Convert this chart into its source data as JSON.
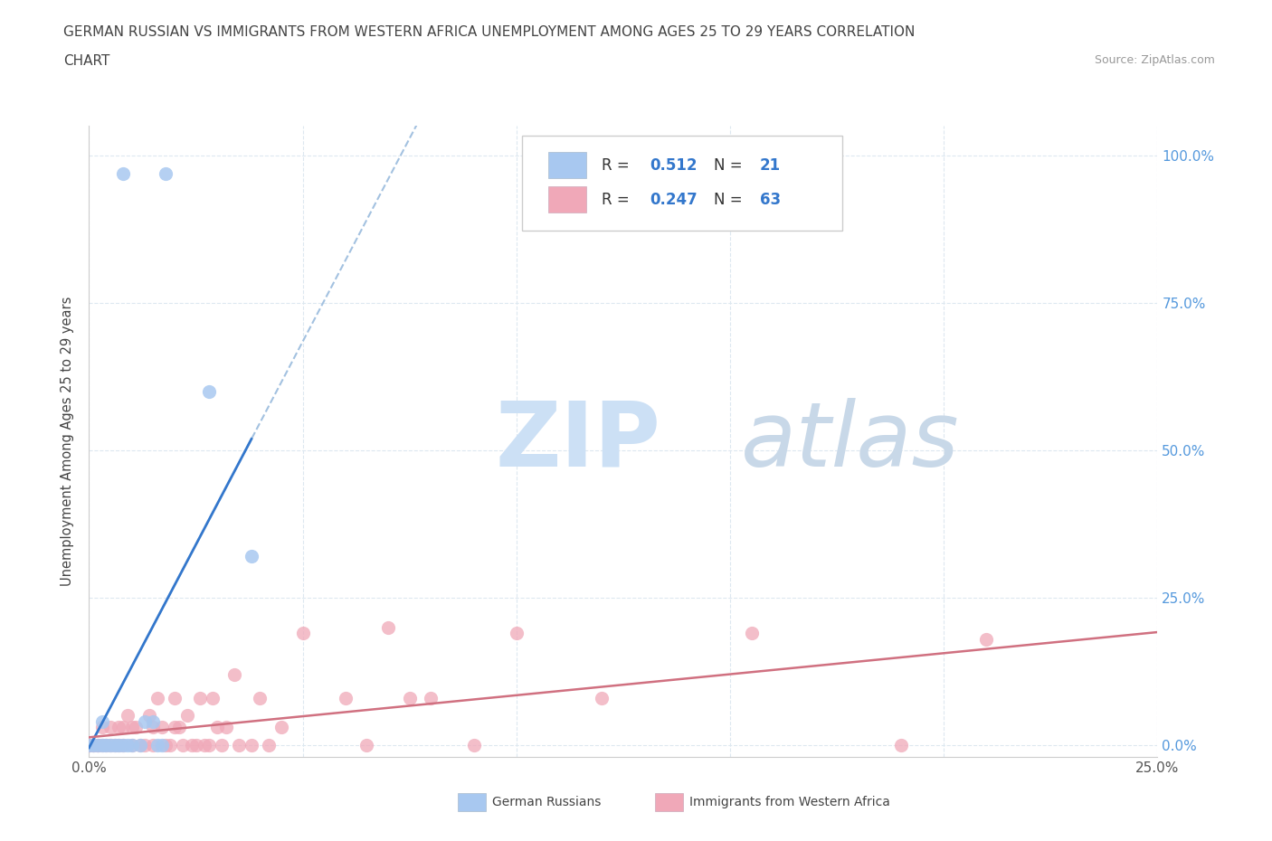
{
  "title_line1": "GERMAN RUSSIAN VS IMMIGRANTS FROM WESTERN AFRICA UNEMPLOYMENT AMONG AGES 25 TO 29 YEARS CORRELATION",
  "title_line2": "CHART",
  "source_text": "Source: ZipAtlas.com",
  "ylabel": "Unemployment Among Ages 25 to 29 years",
  "xlim": [
    0.0,
    0.25
  ],
  "ylim": [
    -0.02,
    1.05
  ],
  "color_blue": "#a8c8f0",
  "color_blue_line": "#3377cc",
  "color_blue_dash": "#99bbdd",
  "color_pink": "#f0a8b8",
  "color_pink_line": "#d07080",
  "watermark_zip": "ZIP",
  "watermark_atlas": "atlas",
  "watermark_color_zip": "#cce0f5",
  "watermark_color_atlas": "#c8d8e8",
  "background_color": "#ffffff",
  "grid_color": "#dde8f0",
  "legend_r1_text": "R = ",
  "legend_r1_val": "0.512",
  "legend_n1_text": "N = ",
  "legend_n1_val": "21",
  "legend_r2_text": "R = ",
  "legend_r2_val": "0.247",
  "legend_n2_text": "N = ",
  "legend_n2_val": "63",
  "german_russian_points": [
    [
      0.008,
      0.97
    ],
    [
      0.018,
      0.97
    ],
    [
      0.028,
      0.6
    ],
    [
      0.038,
      0.32
    ],
    [
      0.0,
      0.0
    ],
    [
      0.001,
      0.0
    ],
    [
      0.002,
      0.0
    ],
    [
      0.003,
      0.0
    ],
    [
      0.004,
      0.0
    ],
    [
      0.005,
      0.0
    ],
    [
      0.006,
      0.0
    ],
    [
      0.007,
      0.0
    ],
    [
      0.008,
      0.0
    ],
    [
      0.009,
      0.0
    ],
    [
      0.01,
      0.0
    ],
    [
      0.012,
      0.0
    ],
    [
      0.013,
      0.04
    ],
    [
      0.015,
      0.04
    ],
    [
      0.016,
      0.0
    ],
    [
      0.017,
      0.0
    ],
    [
      0.003,
      0.04
    ]
  ],
  "western_africa_points": [
    [
      0.0,
      0.0
    ],
    [
      0.0,
      0.0
    ],
    [
      0.0,
      0.0
    ],
    [
      0.0,
      0.0
    ],
    [
      0.001,
      0.0
    ],
    [
      0.001,
      0.0
    ],
    [
      0.002,
      0.0
    ],
    [
      0.002,
      0.0
    ],
    [
      0.003,
      0.0
    ],
    [
      0.003,
      0.03
    ],
    [
      0.004,
      0.0
    ],
    [
      0.005,
      0.0
    ],
    [
      0.005,
      0.03
    ],
    [
      0.006,
      0.0
    ],
    [
      0.007,
      0.0
    ],
    [
      0.007,
      0.03
    ],
    [
      0.008,
      0.0
    ],
    [
      0.008,
      0.03
    ],
    [
      0.009,
      0.05
    ],
    [
      0.01,
      0.03
    ],
    [
      0.01,
      0.0
    ],
    [
      0.011,
      0.03
    ],
    [
      0.012,
      0.0
    ],
    [
      0.013,
      0.0
    ],
    [
      0.014,
      0.05
    ],
    [
      0.015,
      0.03
    ],
    [
      0.015,
      0.0
    ],
    [
      0.016,
      0.08
    ],
    [
      0.017,
      0.03
    ],
    [
      0.018,
      0.0
    ],
    [
      0.019,
      0.0
    ],
    [
      0.02,
      0.08
    ],
    [
      0.02,
      0.03
    ],
    [
      0.021,
      0.03
    ],
    [
      0.022,
      0.0
    ],
    [
      0.023,
      0.05
    ],
    [
      0.024,
      0.0
    ],
    [
      0.025,
      0.0
    ],
    [
      0.026,
      0.08
    ],
    [
      0.027,
      0.0
    ],
    [
      0.028,
      0.0
    ],
    [
      0.029,
      0.08
    ],
    [
      0.03,
      0.03
    ],
    [
      0.031,
      0.0
    ],
    [
      0.032,
      0.03
    ],
    [
      0.034,
      0.12
    ],
    [
      0.035,
      0.0
    ],
    [
      0.038,
      0.0
    ],
    [
      0.04,
      0.08
    ],
    [
      0.042,
      0.0
    ],
    [
      0.045,
      0.03
    ],
    [
      0.05,
      0.19
    ],
    [
      0.06,
      0.08
    ],
    [
      0.065,
      0.0
    ],
    [
      0.07,
      0.2
    ],
    [
      0.075,
      0.08
    ],
    [
      0.08,
      0.08
    ],
    [
      0.09,
      0.0
    ],
    [
      0.1,
      0.19
    ],
    [
      0.12,
      0.08
    ],
    [
      0.155,
      0.19
    ],
    [
      0.19,
      0.0
    ],
    [
      0.21,
      0.18
    ]
  ]
}
